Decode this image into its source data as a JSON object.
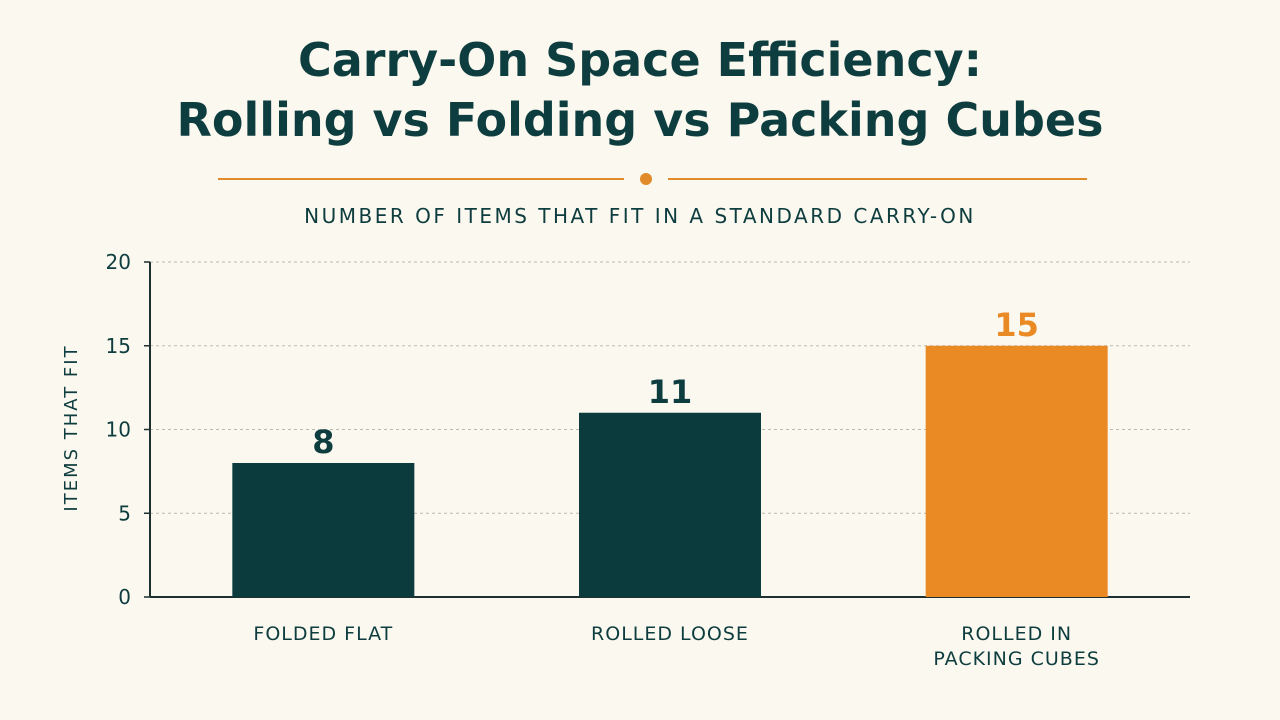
{
  "title_lines": [
    "Carry-On Space Efficiency:",
    "Rolling vs Folding vs Packing Cubes"
  ],
  "subtitle": "NUMBER OF ITEMS THAT FIT IN A STANDARD CARRY-ON",
  "colors": {
    "background": "#fbf8ef",
    "text": "#0e3d3f",
    "bar_default": "#0b3b3d",
    "bar_highlight": "#ea8a24",
    "divider": "#e08a2a",
    "grid": "#b9b9b3",
    "axis": "#1d2f2f"
  },
  "chart_data": {
    "type": "bar",
    "categories": [
      [
        "FOLDED FLAT"
      ],
      [
        "ROLLED LOOSE"
      ],
      [
        "ROLLED IN",
        "PACKING CUBES"
      ]
    ],
    "values": [
      8,
      11,
      15
    ],
    "data_labels": [
      "8",
      "11",
      "15"
    ],
    "highlight_index": 2,
    "ylabel": "ITEMS THAT FIT",
    "ylim": [
      0,
      20
    ],
    "yticks": [
      0,
      5,
      10,
      15,
      20
    ],
    "grid": true,
    "grid_style": "dotted"
  }
}
